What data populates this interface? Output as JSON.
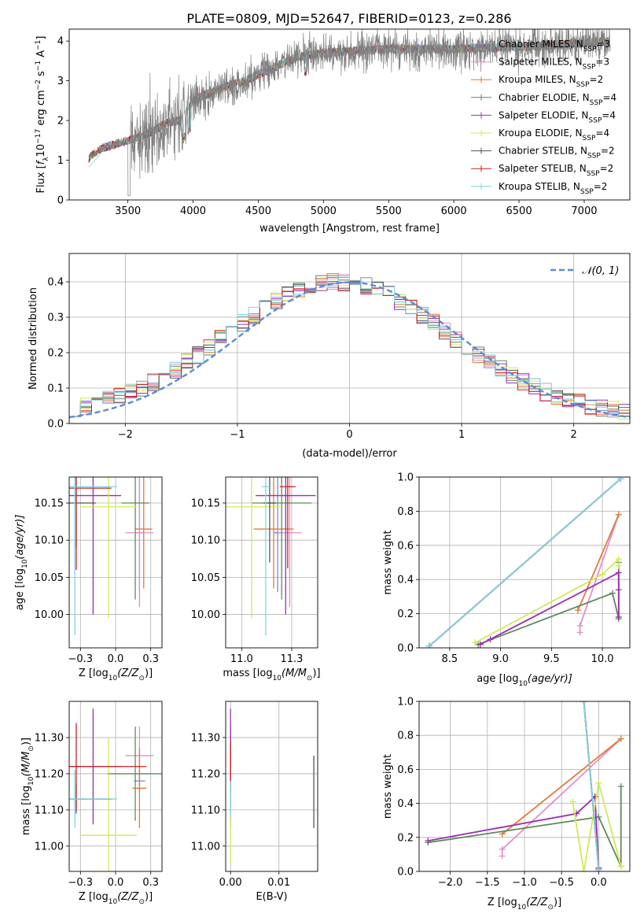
{
  "figure": {
    "title": "PLATE=0809, MJD=52647, FIBERID=0123, z=0.286"
  },
  "colors": {
    "Chabrier MILES": "#6b8ed6",
    "Salpeter MILES": "#e38fc9",
    "Kroupa MILES": "#e07b39",
    "Chabrier ELODIE": "#5c8a5c",
    "Salpeter ELODIE": "#9a2fb0",
    "Kroupa ELODIE": "#d2e85a",
    "Chabrier STELIB": "#555555",
    "Salpeter STELIB": "#cc2222",
    "Kroupa STELIB": "#7fd6e0",
    "observed": "#808080",
    "gaussian": "#5b8bd6"
  },
  "chart_data": [
    {
      "id": "spectrum",
      "type": "line",
      "xlabel": "wavelength [Angstrom, rest frame]",
      "ylabel_main": "Flux [",
      "ylabel_sub": "f",
      "ylabel_subscript": "λ",
      "ylabel_rest": "10",
      "ylabel_exp": "−17",
      "ylabel_unit": " erg cm",
      "ylabel_unit_exp": "−2",
      "ylabel_s": " s",
      "ylabel_s_exp": "−1",
      "ylabel_A": " A",
      "ylabel_A_exp": "−1",
      "ylabel_close": "]",
      "xlim": [
        3050,
        7350
      ],
      "ylim": [
        0,
        4.3
      ],
      "xticks": [
        3500,
        4000,
        4500,
        5000,
        5500,
        6000,
        6500,
        7000
      ],
      "yticks": [
        0,
        1,
        2,
        3,
        4
      ],
      "grid": false,
      "legend_position": "top-right",
      "legend": [
        {
          "model": "Chabrier MILES",
          "nssp": "3"
        },
        {
          "model": "Salpeter MILES",
          "nssp": "3"
        },
        {
          "model": "Kroupa MILES",
          "nssp": "2"
        },
        {
          "model": "Chabrier ELODIE",
          "nssp": "4"
        },
        {
          "model": "Salpeter ELODIE",
          "nssp": "4"
        },
        {
          "model": "Kroupa ELODIE",
          "nssp": "4"
        },
        {
          "model": "Chabrier STELIB",
          "nssp": "2"
        },
        {
          "model": "Salpeter STELIB",
          "nssp": "2"
        },
        {
          "model": "Kroupa STELIB",
          "nssp": "2"
        }
      ],
      "nssp_prefix": "N",
      "nssp_sub": "SSP",
      "continuum": [
        [
          3200,
          1.05
        ],
        [
          3300,
          1.3
        ],
        [
          3400,
          1.4
        ],
        [
          3500,
          1.5
        ],
        [
          3600,
          1.6
        ],
        [
          3700,
          1.75
        ],
        [
          3800,
          1.95
        ],
        [
          3900,
          2.0
        ],
        [
          4000,
          2.5
        ],
        [
          4200,
          2.8
        ],
        [
          4400,
          3.0
        ],
        [
          4600,
          3.3
        ],
        [
          4800,
          3.6
        ],
        [
          5000,
          3.7
        ],
        [
          5200,
          3.75
        ],
        [
          5500,
          3.8
        ],
        [
          6000,
          3.8
        ],
        [
          6500,
          3.85
        ],
        [
          7000,
          3.95
        ],
        [
          7200,
          4.0
        ]
      ]
    },
    {
      "id": "residuals",
      "type": "histogram",
      "xlabel": "(data-model)/error",
      "ylabel": "Normed distribution",
      "xlim": [
        -2.5,
        2.5
      ],
      "ylim": [
        0,
        0.48
      ],
      "xticks": [
        -2,
        -1,
        0,
        1,
        2
      ],
      "yticks": [
        0.0,
        0.1,
        0.2,
        0.3,
        0.4
      ],
      "grid": true,
      "legend_position": "top-right",
      "gaussian_label": "𝒩(0, 1)",
      "bin_edges_start": -2.5,
      "bin_width": 0.1,
      "bins": 50
    },
    {
      "id": "age-vs-Z",
      "type": "errorbar",
      "xlabel": "Z [log",
      "xlabel_sub": "10",
      "xlabel_rest": "(Z/Z",
      "xlabel_sun": "⊙",
      "xlabel_close": ")]",
      "ylabel": "age  [log",
      "ylabel_sub": "10",
      "ylabel_rest": "(age/yr)]",
      "xlim": [
        -0.33,
        0.33
      ],
      "ylim": [
        9.955,
        10.185
      ],
      "xticks": [
        -0.25,
        0.0,
        0.25
      ],
      "yticks": [
        10.0,
        10.05,
        10.1,
        10.15
      ],
      "grid": true,
      "points": [
        {
          "model": "Chabrier MILES",
          "x": 0.17,
          "xerr": 0.03,
          "y": 10.11,
          "yerr": 0.08
        },
        {
          "model": "Salpeter MILES",
          "x": 0.17,
          "xerr": 0.1,
          "y": 10.11,
          "yerr": 0.1
        },
        {
          "model": "Kroupa MILES",
          "x": 0.2,
          "xerr": 0.06,
          "y": 10.115,
          "yerr": 0.08
        },
        {
          "model": "Chabrier ELODIE",
          "x": 0.14,
          "xerr": 0.1,
          "y": 10.15,
          "yerr": 0.13
        },
        {
          "model": "Salpeter ELODIE",
          "x": -0.16,
          "xerr": 0.2,
          "y": 10.16,
          "yerr": 0.16
        },
        {
          "model": "Kroupa ELODIE",
          "x": -0.05,
          "xerr": 0.2,
          "y": 10.145,
          "yerr": 0.15
        },
        {
          "model": "Chabrier STELIB",
          "x": -0.28,
          "xerr": 0.14,
          "y": 10.15,
          "yerr": 0.06
        },
        {
          "model": "Salpeter STELIB",
          "x": -0.28,
          "xerr": 0.25,
          "y": 10.17,
          "yerr": 0.11
        },
        {
          "model": "Kroupa STELIB",
          "x": -0.29,
          "xerr": 0.3,
          "y": 10.172,
          "yerr": 0.2
        }
      ]
    },
    {
      "id": "age-vs-mass",
      "type": "errorbar",
      "xlabel": "mass [log",
      "xlabel_sub": "10",
      "xlabel_rest": "(M/M",
      "xlabel_sun": "⊙",
      "xlabel_close": ")]",
      "xlim": [
        10.92,
        11.38
      ],
      "ylim": [
        9.955,
        10.185
      ],
      "xticks": [
        11.0,
        11.25
      ],
      "yticks": [
        10.0,
        10.05,
        10.1,
        10.15
      ],
      "grid": true,
      "points": [
        {
          "model": "Chabrier MILES",
          "x": 11.18,
          "xerr": 0.02,
          "y": 10.11,
          "yerr": 0.08
        },
        {
          "model": "Salpeter MILES",
          "x": 11.24,
          "xerr": 0.06,
          "y": 10.11,
          "yerr": 0.1
        },
        {
          "model": "Kroupa MILES",
          "x": 11.16,
          "xerr": 0.1,
          "y": 10.115,
          "yerr": 0.08
        },
        {
          "model": "Chabrier ELODIE",
          "x": 11.2,
          "xerr": 0.15,
          "y": 10.15,
          "yerr": 0.13
        },
        {
          "model": "Salpeter ELODIE",
          "x": 11.22,
          "xerr": 0.15,
          "y": 10.16,
          "yerr": 0.16
        },
        {
          "model": "Kroupa ELODIE",
          "x": 11.05,
          "xerr": 0.15,
          "y": 10.145,
          "yerr": 0.15
        },
        {
          "model": "Chabrier STELIB",
          "x": 11.14,
          "xerr": 0.03,
          "y": 10.15,
          "yerr": 0.08
        },
        {
          "model": "Salpeter STELIB",
          "x": 11.23,
          "xerr": 0.04,
          "y": 10.172,
          "yerr": 0.11
        },
        {
          "model": "Kroupa STELIB",
          "x": 11.12,
          "xerr": 0.02,
          "y": 10.172,
          "yerr": 0.2
        }
      ]
    },
    {
      "id": "weight-vs-age",
      "type": "line",
      "xlabel": "age  [log",
      "xlabel_sub": "10",
      "xlabel_rest": "(age/yr)]",
      "ylabel": "mass weight",
      "xlim": [
        8.2,
        10.27
      ],
      "ylim": [
        0,
        1
      ],
      "xticks": [
        8.5,
        9.0,
        9.5,
        10.0
      ],
      "yticks": [
        0.0,
        0.2,
        0.4,
        0.6,
        0.8,
        1.0
      ],
      "grid": true,
      "series": [
        {
          "model": "Chabrier MILES",
          "points": [
            [
              8.3,
              0.01
            ],
            [
              10.18,
              0.99
            ]
          ]
        },
        {
          "model": "Salpeter MILES",
          "points": [
            [
              9.78,
              0.09
            ],
            [
              9.78,
              0.13
            ],
            [
              10.16,
              0.78
            ]
          ]
        },
        {
          "model": "Kroupa MILES",
          "points": [
            [
              9.76,
              0.22
            ],
            [
              10.16,
              0.78
            ]
          ]
        },
        {
          "model": "Chabrier ELODIE",
          "points": [
            [
              8.78,
              0.02
            ],
            [
              10.1,
              0.32
            ],
            [
              10.16,
              0.17
            ],
            [
              10.16,
              0.5
            ]
          ]
        },
        {
          "model": "Salpeter ELODIE",
          "points": [
            [
              8.8,
              0.02
            ],
            [
              8.9,
              0.05
            ],
            [
              10.16,
              0.44
            ],
            [
              10.16,
              0.18
            ],
            [
              10.16,
              0.34
            ]
          ]
        },
        {
          "model": "Kroupa ELODIE",
          "points": [
            [
              8.75,
              0.03
            ],
            [
              10.0,
              0.43
            ],
            [
              10.16,
              0.52
            ],
            [
              10.16,
              0.48
            ]
          ]
        },
        {
          "model": "Chabrier STELIB",
          "points": [
            [
              8.3,
              0.01
            ],
            [
              10.18,
              0.99
            ]
          ]
        },
        {
          "model": "Salpeter STELIB",
          "points": [
            [
              8.3,
              0.01
            ],
            [
              10.18,
              0.99
            ]
          ]
        },
        {
          "model": "Kroupa STELIB",
          "points": [
            [
              8.3,
              0.01
            ],
            [
              10.18,
              0.99
            ]
          ]
        }
      ]
    },
    {
      "id": "mass-vs-Z",
      "type": "errorbar",
      "xlabel": "Z [log",
      "xlabel_sub": "10",
      "xlabel_rest": "(Z/Z",
      "xlabel_sun": "⊙",
      "xlabel_close": ")]",
      "ylabel": "mass [log",
      "ylabel_sub": "10",
      "ylabel_rest": "(M/M",
      "ylabel_sun": "⊙",
      "ylabel_close": ")]",
      "xlim": [
        -0.33,
        0.33
      ],
      "ylim": [
        10.93,
        11.4
      ],
      "xticks": [
        -0.25,
        0.0,
        0.25
      ],
      "yticks": [
        11.0,
        11.1,
        11.2,
        11.3
      ],
      "grid": true,
      "points": [
        {
          "model": "Chabrier MILES",
          "x": 0.17,
          "xerr": 0.04,
          "y": 11.18,
          "yerr": 0.03
        },
        {
          "model": "Salpeter MILES",
          "x": 0.17,
          "xerr": 0.1,
          "y": 11.25,
          "yerr": 0.08
        },
        {
          "model": "Kroupa MILES",
          "x": 0.17,
          "xerr": 0.05,
          "y": 11.16,
          "yerr": 0.11
        },
        {
          "model": "Chabrier ELODIE",
          "x": 0.14,
          "xerr": 0.2,
          "y": 11.2,
          "yerr": 0.13
        },
        {
          "model": "Salpeter ELODIE",
          "x": -0.16,
          "xerr": 0.2,
          "y": 11.22,
          "yerr": 0.16
        },
        {
          "model": "Kroupa ELODIE",
          "x": -0.05,
          "xerr": 0.2,
          "y": 11.03,
          "yerr": 0.27
        },
        {
          "model": "Chabrier STELIB",
          "x": -0.28,
          "xerr": 0.25,
          "y": 11.13,
          "yerr": 0.04
        },
        {
          "model": "Salpeter STELIB",
          "x": -0.28,
          "xerr": 0.5,
          "y": 11.22,
          "yerr": 0.12
        },
        {
          "model": "Kroupa STELIB",
          "x": -0.29,
          "xerr": 0.3,
          "y": 11.13,
          "yerr": 0.08
        }
      ]
    },
    {
      "id": "mass-vs-EBV",
      "type": "errorbar",
      "xlabel": "E(B-V)",
      "xlim": [
        -0.001,
        0.018
      ],
      "ylim": [
        10.93,
        11.4
      ],
      "xticks": [
        0.0,
        0.01
      ],
      "yticks": [
        11.0,
        11.1,
        11.2,
        11.3
      ],
      "grid": true,
      "points": [
        {
          "model": "Chabrier MILES",
          "x": 0.0,
          "xerr": 0.0,
          "y": 11.18,
          "yerr": 0.03
        },
        {
          "model": "Salpeter MILES",
          "x": 0.0,
          "xerr": 0.0,
          "y": 11.25,
          "yerr": 0.08
        },
        {
          "model": "Kroupa MILES",
          "x": 0.0,
          "xerr": 0.0,
          "y": 11.16,
          "yerr": 0.11
        },
        {
          "model": "Chabrier ELODIE",
          "x": 0.0,
          "xerr": 0.0,
          "y": 11.2,
          "yerr": 0.13
        },
        {
          "model": "Salpeter ELODIE",
          "x": 0.0,
          "xerr": 0.0,
          "y": 11.22,
          "yerr": 0.16
        },
        {
          "model": "Kroupa ELODIE",
          "x": 0.0,
          "xerr": 0.0,
          "y": 11.03,
          "yerr": 0.08
        },
        {
          "model": "Chabrier STELIB",
          "x": 0.0172,
          "xerr": 0.0,
          "y": 11.15,
          "yerr": 0.1
        },
        {
          "model": "Salpeter STELIB",
          "x": 0.0,
          "xerr": 0.0,
          "y": 11.22,
          "yerr": 0.07
        },
        {
          "model": "Kroupa STELIB",
          "x": 0.0,
          "xerr": 0.0,
          "y": 11.13,
          "yerr": 0.05
        }
      ]
    },
    {
      "id": "weight-vs-Z",
      "type": "line",
      "xlabel": "Z [log",
      "xlabel_sub": "10",
      "xlabel_rest": "(Z/Z",
      "xlabel_sun": "⊙",
      "xlabel_close": ")]",
      "ylabel": "mass weight",
      "xlim": [
        -2.42,
        0.42
      ],
      "ylim": [
        0,
        1
      ],
      "xticks": [
        -2.0,
        -1.5,
        -1.0,
        -0.5,
        0.0
      ],
      "yticks": [
        0.0,
        0.2,
        0.4,
        0.6,
        0.8,
        1.0
      ],
      "grid": true,
      "series": [
        {
          "model": "Chabrier MILES",
          "points": [
            [
              -0.2,
              1.0
            ],
            [
              0.0,
              0.01
            ]
          ]
        },
        {
          "model": "Salpeter MILES",
          "points": [
            [
              -1.3,
              0.09
            ],
            [
              -1.3,
              0.13
            ],
            [
              0.3,
              0.78
            ]
          ]
        },
        {
          "model": "Kroupa MILES",
          "points": [
            [
              -1.3,
              0.22
            ],
            [
              0.3,
              0.78
            ]
          ]
        },
        {
          "model": "Chabrier ELODIE",
          "points": [
            [
              -2.3,
              0.17
            ],
            [
              0.0,
              0.32
            ],
            [
              0.3,
              0.03
            ],
            [
              0.3,
              0.5
            ]
          ]
        },
        {
          "model": "Salpeter ELODIE",
          "points": [
            [
              -2.3,
              0.18
            ],
            [
              -0.3,
              0.34
            ],
            [
              -0.05,
              0.44
            ],
            [
              0.0,
              0.02
            ]
          ]
        },
        {
          "model": "Kroupa ELODIE",
          "points": [
            [
              -0.35,
              0.41
            ],
            [
              -0.2,
              0.0
            ],
            [
              0.0,
              0.52
            ],
            [
              0.3,
              0.03
            ]
          ]
        },
        {
          "model": "Chabrier STELIB",
          "points": [
            [
              -0.2,
              1.0
            ],
            [
              0.0,
              0.01
            ]
          ]
        },
        {
          "model": "Salpeter STELIB",
          "points": [
            [
              -0.2,
              1.0
            ],
            [
              0.0,
              0.01
            ]
          ]
        },
        {
          "model": "Kroupa STELIB",
          "points": [
            [
              -0.2,
              1.0
            ],
            [
              0.0,
              0.01
            ]
          ]
        }
      ]
    }
  ]
}
